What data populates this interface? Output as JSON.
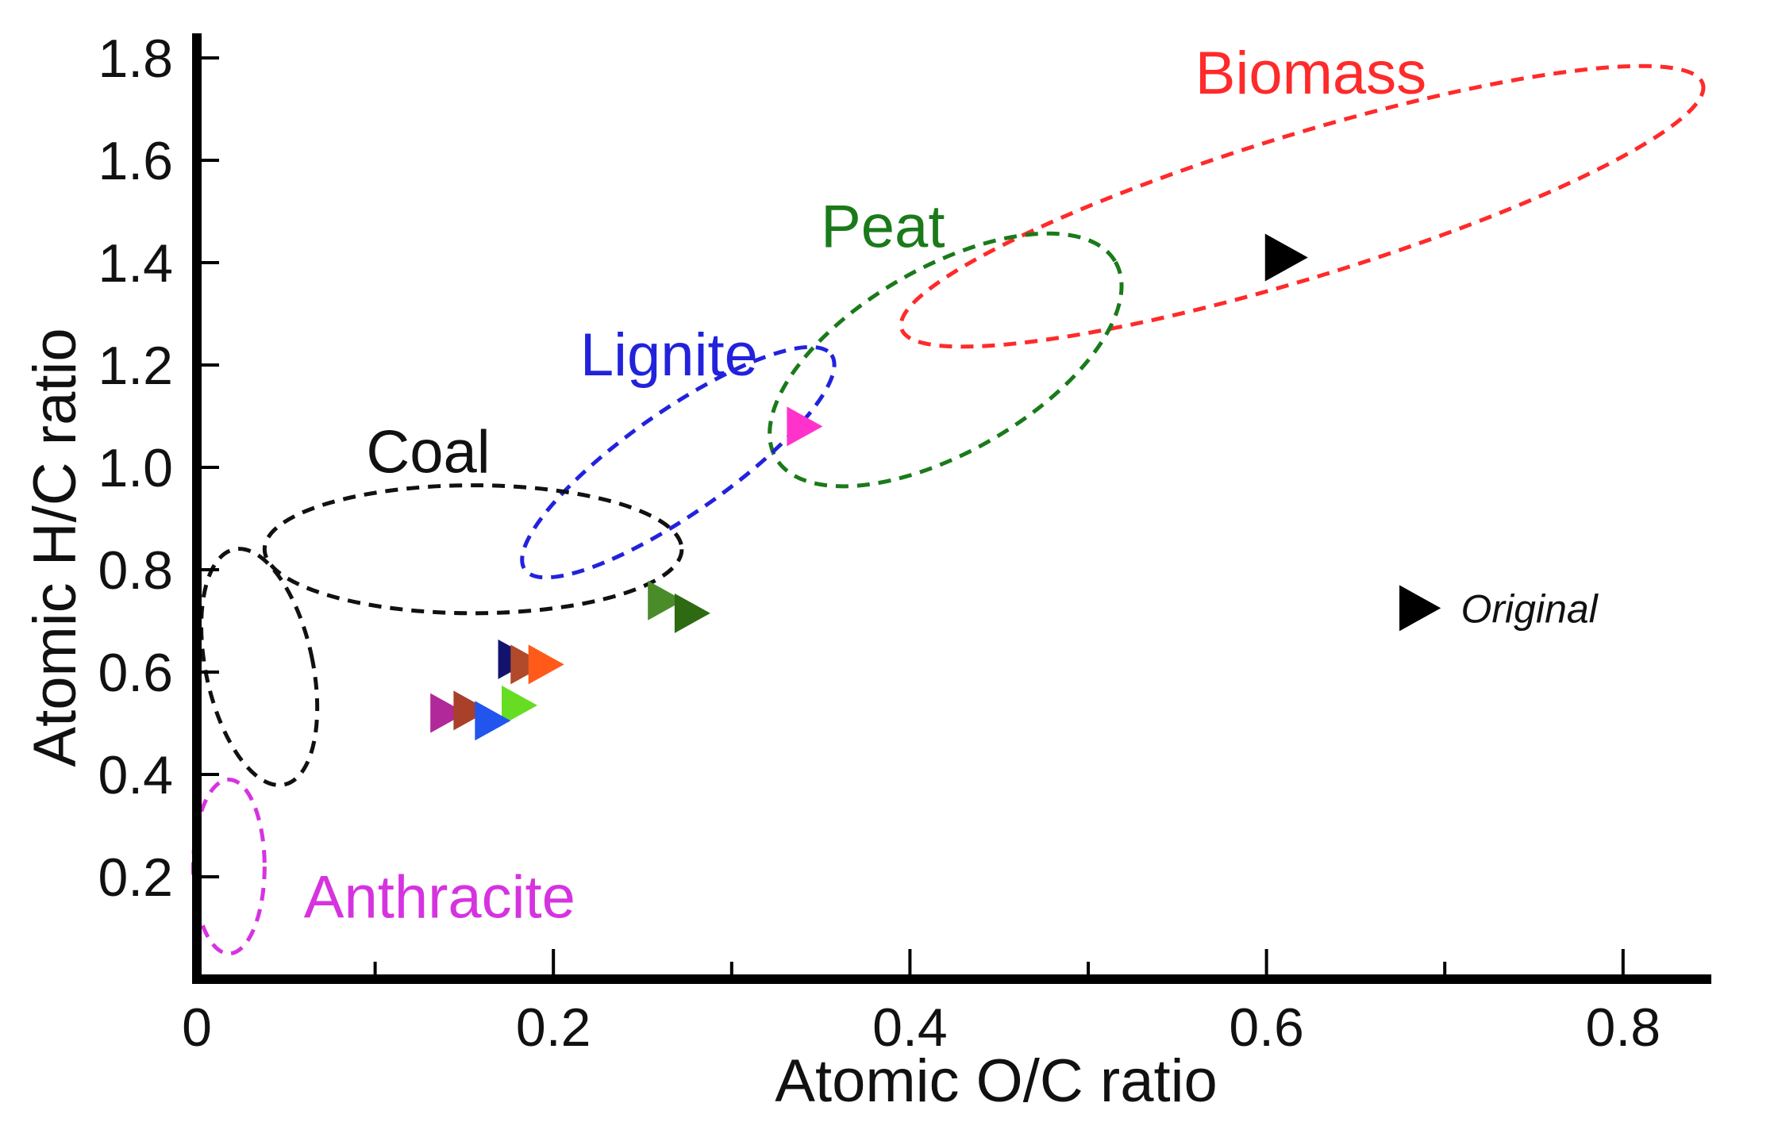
{
  "chart_data": {
    "type": "scatter",
    "title": "",
    "xlabel": "Atomic O/C ratio",
    "ylabel": "Atomic H/C ratio",
    "xlim": [
      0,
      0.85
    ],
    "ylim": [
      0,
      1.85
    ],
    "x_ticks": [
      {
        "value": 0,
        "label": "0"
      },
      {
        "value": 0.2,
        "label": "0.2"
      },
      {
        "value": 0.4,
        "label": "0.4"
      },
      {
        "value": 0.6,
        "label": "0.6"
      },
      {
        "value": 0.8,
        "label": "0.8"
      }
    ],
    "x_minor_ticks": [
      0.1,
      0.3,
      0.5,
      0.7
    ],
    "y_ticks": [
      {
        "value": 0.2,
        "label": "0.2"
      },
      {
        "value": 0.4,
        "label": "0.4"
      },
      {
        "value": 0.6,
        "label": "0.6"
      },
      {
        "value": 0.8,
        "label": "0.8"
      },
      {
        "value": 1.0,
        "label": "1.0"
      },
      {
        "value": 1.2,
        "label": "1.2"
      },
      {
        "value": 1.4,
        "label": "1.4"
      },
      {
        "value": 1.6,
        "label": "1.6"
      },
      {
        "value": 1.8,
        "label": "1.8"
      }
    ],
    "regions": [
      {
        "name": "Biomass",
        "color": "#ff2a2a",
        "cx": 0.62,
        "cy": 1.51,
        "rx": 0.235,
        "ry": 0.14,
        "angle": 17,
        "label_x": 0.56,
        "label_y": 1.73
      },
      {
        "name": "Peat",
        "color": "#1a7a1a",
        "cx": 0.42,
        "cy": 1.21,
        "rx": 0.11,
        "ry": 0.18,
        "angle": 30,
        "label_x": 0.35,
        "label_y": 1.43
      },
      {
        "name": "Lignite",
        "color": "#2222dd",
        "cx": 0.27,
        "cy": 1.01,
        "rx": 0.105,
        "ry": 0.1,
        "angle": 35,
        "label_x": 0.215,
        "label_y": 1.18
      },
      {
        "name": "Coal",
        "color": "#111111",
        "cx": 0.155,
        "cy": 0.84,
        "rx": 0.117,
        "ry": 0.125,
        "angle": 0,
        "label_x": 0.095,
        "label_y": 0.99
      },
      {
        "name": "",
        "color": "#111111",
        "cx": 0.035,
        "cy": 0.61,
        "rx": 0.03,
        "ry": 0.235,
        "angle": 12,
        "label_x": 0,
        "label_y": 0
      },
      {
        "name": "Anthracite",
        "color": "#d633e0",
        "cx": 0.018,
        "cy": 0.22,
        "rx": 0.02,
        "ry": 0.17,
        "angle": 0,
        "label_x": 0.06,
        "label_y": 0.12
      }
    ],
    "series": [
      {
        "name": "Original",
        "color": "#000000",
        "size": "large",
        "x": 0.61,
        "y": 1.41
      },
      {
        "name": "",
        "color": "#ff33cc",
        "size": "medium",
        "x": 0.34,
        "y": 1.08
      },
      {
        "name": "",
        "color": "#4a8c2a",
        "size": "medium",
        "x": 0.262,
        "y": 0.74
      },
      {
        "name": "",
        "color": "#2d6a12",
        "size": "medium",
        "x": 0.277,
        "y": 0.715
      },
      {
        "name": "",
        "color": "#13136e",
        "size": "medium",
        "x": 0.178,
        "y": 0.625
      },
      {
        "name": "",
        "color": "#b04a2a",
        "size": "medium",
        "x": 0.185,
        "y": 0.615
      },
      {
        "name": "",
        "color": "#ff5a1a",
        "size": "medium",
        "x": 0.195,
        "y": 0.615
      },
      {
        "name": "",
        "color": "#b0289a",
        "size": "medium",
        "x": 0.14,
        "y": 0.52
      },
      {
        "name": "",
        "color": "#a8402a",
        "size": "medium",
        "x": 0.153,
        "y": 0.525
      },
      {
        "name": "",
        "color": "#66dd22",
        "size": "medium",
        "x": 0.18,
        "y": 0.535
      },
      {
        "name": "",
        "color": "#2255ee",
        "size": "medium",
        "x": 0.165,
        "y": 0.505
      }
    ],
    "legend": [
      {
        "label": "Original",
        "color": "#000000",
        "x": 0.685,
        "y": 0.725
      }
    ]
  }
}
